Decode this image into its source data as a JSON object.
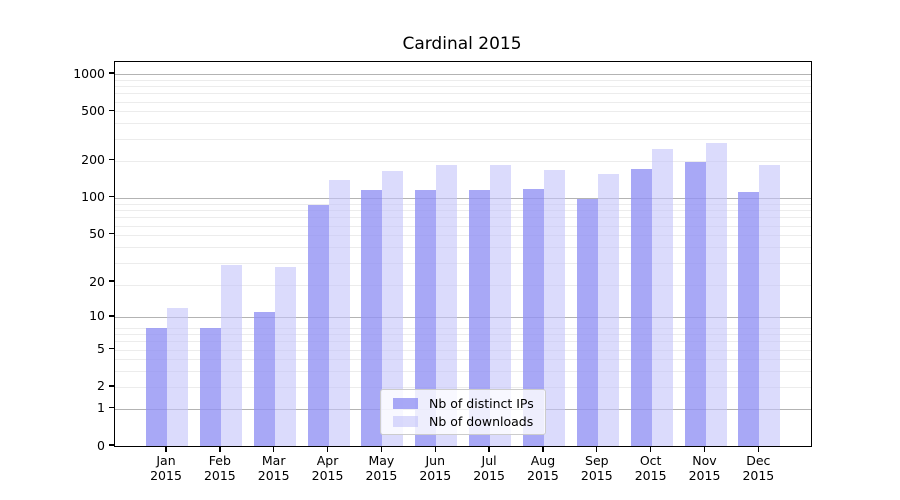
{
  "chart_data": {
    "type": "bar",
    "title": "Cardinal 2015",
    "categories": [
      "Jan",
      "Feb",
      "Mar",
      "Apr",
      "May",
      "Jun",
      "Jul",
      "Aug",
      "Sep",
      "Oct",
      "Nov",
      "Dec"
    ],
    "x_year_label": "2015",
    "series": [
      {
        "name": "Nb of distinct IPs",
        "color": "#9292f4",
        "alpha": 0.8,
        "values": [
          8,
          8,
          11,
          87,
          116,
          116,
          116,
          118,
          98,
          170,
          195,
          111
        ]
      },
      {
        "name": "Nb of downloads",
        "color": "#c3c3fa",
        "alpha": 0.6,
        "values": [
          12,
          28,
          27,
          138,
          164,
          184,
          184,
          167,
          155,
          246,
          278,
          182
        ]
      }
    ],
    "yscale": "log1p",
    "ylim": [
      0,
      1250
    ],
    "yticks": [
      {
        "value": 1000,
        "label": "1000"
      },
      {
        "value": 500,
        "label": "500"
      },
      {
        "value": 200,
        "label": "200"
      },
      {
        "value": 100,
        "label": "100"
      },
      {
        "value": 50,
        "label": "50"
      },
      {
        "value": 20,
        "label": "20"
      },
      {
        "value": 10,
        "label": "10"
      },
      {
        "value": 5,
        "label": "5"
      },
      {
        "value": 2,
        "label": "2"
      },
      {
        "value": 1,
        "label": "1"
      },
      {
        "value": 0,
        "label": "0"
      }
    ],
    "grid": {
      "major_tick_values": [
        1,
        10,
        100,
        1000
      ],
      "minor_log_units": [
        3,
        4,
        5,
        6,
        7,
        8,
        9,
        20,
        30,
        40,
        50,
        60,
        70,
        80,
        90,
        200,
        300,
        400,
        500,
        600,
        700,
        800,
        900
      ],
      "major_color": "#b3b3b3",
      "minor_color": "#ececec"
    },
    "legend_position": "lower center"
  }
}
